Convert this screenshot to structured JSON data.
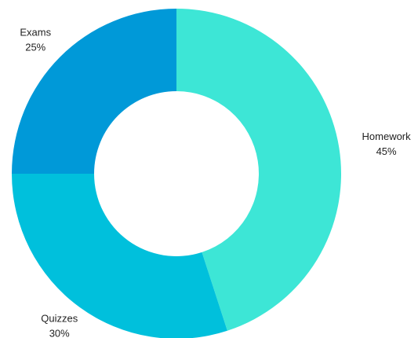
{
  "chart_data": {
    "type": "donut",
    "categories": [
      "Homework",
      "Quizzes",
      "Exams"
    ],
    "values": [
      45,
      30,
      25
    ],
    "value_labels": [
      "45%",
      "30%",
      "25%"
    ],
    "colors": [
      "#3de6d6",
      "#00c0dc",
      "#0099d8"
    ]
  }
}
